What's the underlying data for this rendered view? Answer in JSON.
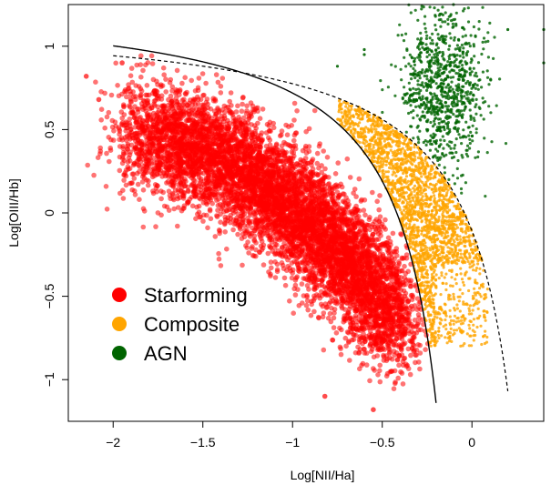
{
  "chart_data": {
    "type": "scatter",
    "title": "",
    "xlabel": "Log[NII/Ha]",
    "ylabel": "Log[OIII/Hb]",
    "xlim": [
      -2.25,
      0.4
    ],
    "ylim": [
      -1.25,
      1.25
    ],
    "x_ticks": [
      -2,
      -1.5,
      -1,
      -0.5,
      0
    ],
    "x_tick_labels": [
      "−2",
      "−1.5",
      "−1",
      "−0.5",
      "0"
    ],
    "y_ticks": [
      -1,
      -0.5,
      0,
      0.5,
      1
    ],
    "y_tick_labels": [
      "−1",
      "−0.5",
      "0",
      "0.5",
      "1"
    ],
    "legend_position": "bottom-left",
    "series": [
      {
        "name": "Starforming",
        "color": "#ff0000",
        "distribution": "dense band along upper-left of solid curve",
        "x_range": [
          -2.15,
          -0.3
        ],
        "y_range": [
          -1.2,
          0.9
        ]
      },
      {
        "name": "Composite",
        "color": "#ffa500",
        "distribution": "between solid and dashed curves",
        "x_range": [
          -0.75,
          0.05
        ],
        "y_range": [
          -0.75,
          0.6
        ]
      },
      {
        "name": "AGN",
        "color": "#006400",
        "distribution": "above dashed curve",
        "x_range": [
          -0.5,
          0.2
        ],
        "y_range": [
          -0.1,
          1.2
        ]
      }
    ],
    "curves": [
      {
        "label": "",
        "style": "solid",
        "equation": "y = 0.61/(x - 0.05) + 1.3",
        "x_range": [
          -2.0,
          -0.2
        ]
      },
      {
        "label": "",
        "style": "dashed",
        "equation": "y = 0.61/(x - 0.47) + 1.19",
        "x_range": [
          -2.0,
          0.2
        ]
      }
    ]
  }
}
